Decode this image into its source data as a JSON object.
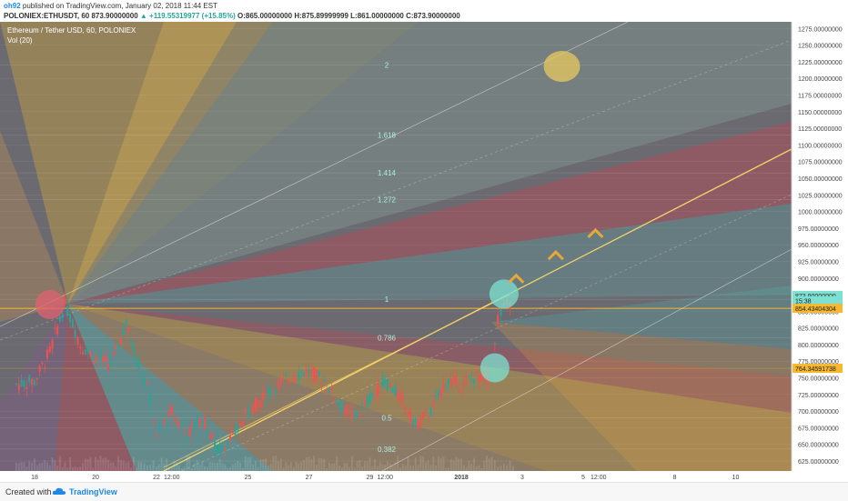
{
  "header": {
    "author": "oh92",
    "published": "published on TradingView.com, January 02, 2018 11:44 EST",
    "symbol": "POLONIEX:ETHUSDT, 60",
    "last": "873.90000000",
    "change": "▲ +119.55319977 (+15.85%)",
    "open": "O:865.00000000",
    "high": "H:875.89999999",
    "low": "L:861.00000000",
    "close": "C:873.90000000"
  },
  "legend": {
    "title": "Ethereum / Tether USD, 60, POLONIEX",
    "vol": "Vol (20)"
  },
  "footer": {
    "created_with": "Created with",
    "brand": "TradingView"
  },
  "colors": {
    "up": "#26a69a",
    "down": "#ef5350",
    "trend": "#f5d36b",
    "price_badge": "#7ee0d0",
    "level_badge": "#f5b82e"
  },
  "chart_data": {
    "type": "line",
    "title": "Ethereum / Tether USD, 60, POLONIEX",
    "ylim": [
      610,
      1285
    ],
    "y_ticks": [
      "1275.00000000",
      "1250.00000000",
      "1225.00000000",
      "1200.00000000",
      "1175.00000000",
      "1150.00000000",
      "1125.00000000",
      "1100.00000000",
      "1075.00000000",
      "1050.00000000",
      "1025.00000000",
      "1000.00000000",
      "975.00000000",
      "950.00000000",
      "925.00000000",
      "900.00000000",
      "875.00000000",
      "850.00000000",
      "825.00000000",
      "800.00000000",
      "775.00000000",
      "750.00000000",
      "725.00000000",
      "700.00000000",
      "675.00000000",
      "650.00000000",
      "625.00000000"
    ],
    "x_ticks": [
      {
        "label": "18",
        "day": 0
      },
      {
        "label": "20",
        "day": 2
      },
      {
        "label": "22",
        "day": 4
      },
      {
        "label": "12:00",
        "day": 4.5
      },
      {
        "label": "25",
        "day": 7
      },
      {
        "label": "27",
        "day": 9
      },
      {
        "label": "29",
        "day": 11
      },
      {
        "label": "12:00",
        "day": 11.5
      },
      {
        "label": "2018",
        "day": 14
      },
      {
        "label": "3",
        "day": 16
      },
      {
        "label": "5",
        "day": 18
      },
      {
        "label": "12:00",
        "day": 18.5
      },
      {
        "label": "8",
        "day": 21
      },
      {
        "label": "10",
        "day": 23
      }
    ],
    "fib_levels": [
      {
        "label": "2",
        "value": 1220
      },
      {
        "label": "1.618",
        "value": 1115
      },
      {
        "label": "1.414",
        "value": 1058
      },
      {
        "label": "1.272",
        "value": 1018
      },
      {
        "label": "1",
        "value": 868
      },
      {
        "label": "0.786",
        "value": 810
      },
      {
        "label": "0.5",
        "value": 690
      },
      {
        "label": "0.382",
        "value": 643
      }
    ],
    "price_labels": [
      {
        "label": "873.90000000",
        "value": 873.9
      },
      {
        "label": "15:38",
        "value": 866
      },
      {
        "label": "854.43404304",
        "value": 854.43
      },
      {
        "label": "764.34591738",
        "value": 764.35
      }
    ],
    "price_path": [
      {
        "day": -0.6,
        "price": 740
      },
      {
        "day": 0,
        "price": 745
      },
      {
        "day": 0.5,
        "price": 790
      },
      {
        "day": 1,
        "price": 862
      },
      {
        "day": 1.5,
        "price": 800
      },
      {
        "day": 2,
        "price": 780
      },
      {
        "day": 2.5,
        "price": 770
      },
      {
        "day": 3,
        "price": 830
      },
      {
        "day": 3.5,
        "price": 760
      },
      {
        "day": 3.8,
        "price": 720
      },
      {
        "day": 4,
        "price": 660
      },
      {
        "day": 4.5,
        "price": 700
      },
      {
        "day": 5,
        "price": 665
      },
      {
        "day": 5.5,
        "price": 690
      },
      {
        "day": 6,
        "price": 640
      },
      {
        "day": 6.5,
        "price": 660
      },
      {
        "day": 7,
        "price": 700
      },
      {
        "day": 7.5,
        "price": 720
      },
      {
        "day": 8,
        "price": 740
      },
      {
        "day": 8.5,
        "price": 755
      },
      {
        "day": 9,
        "price": 760
      },
      {
        "day": 9.5,
        "price": 745
      },
      {
        "day": 10,
        "price": 710
      },
      {
        "day": 10.5,
        "price": 690
      },
      {
        "day": 11,
        "price": 720
      },
      {
        "day": 11.5,
        "price": 745
      },
      {
        "day": 12,
        "price": 720
      },
      {
        "day": 12.5,
        "price": 680
      },
      {
        "day": 13,
        "price": 700
      },
      {
        "day": 13.5,
        "price": 745
      },
      {
        "day": 14,
        "price": 740
      },
      {
        "day": 14.5,
        "price": 752
      },
      {
        "day": 15,
        "price": 754
      },
      {
        "day": 15.2,
        "price": 840
      },
      {
        "day": 15.5,
        "price": 860
      },
      {
        "day": 15.8,
        "price": 874
      }
    ],
    "highlights": [
      {
        "day": 0.5,
        "price": 860,
        "color": "#e06070"
      },
      {
        "day": 15.1,
        "price": 765,
        "color": "#7ee0d0"
      },
      {
        "day": 15.4,
        "price": 876,
        "color": "#7ee0d0"
      },
      {
        "day": 17.3,
        "price": 1218,
        "color": "#e8c860"
      }
    ],
    "chevrons": [
      {
        "day": 15.8,
        "price": 900
      },
      {
        "day": 17.1,
        "price": 935
      },
      {
        "day": 18.4,
        "price": 968
      }
    ]
  }
}
